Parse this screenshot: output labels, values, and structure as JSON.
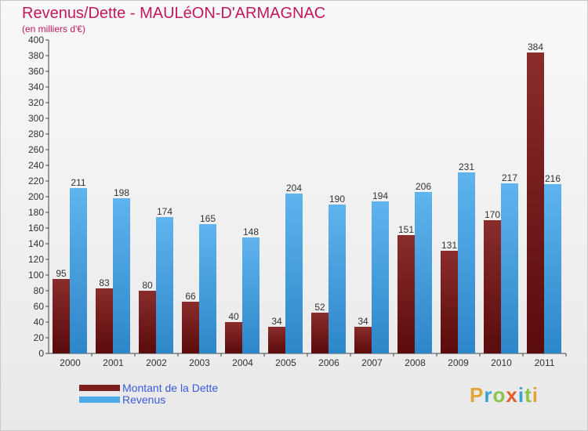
{
  "chart_data": {
    "type": "bar",
    "title": "Revenus/Dette - MAULéON-D'ARMAGNAC",
    "subtitle": "(en milliers d'€)",
    "categories": [
      "2000",
      "2001",
      "2002",
      "2003",
      "2004",
      "2005",
      "2006",
      "2007",
      "2008",
      "2009",
      "2010",
      "2011"
    ],
    "series": [
      {
        "name": "Montant de la Dette",
        "color": "#7b1f1f",
        "values": [
          95,
          83,
          80,
          66,
          40,
          34,
          52,
          34,
          151,
          131,
          170,
          384
        ]
      },
      {
        "name": "Revenus",
        "color": "#4fa9e8",
        "values": [
          211,
          198,
          174,
          165,
          148,
          204,
          190,
          194,
          206,
          231,
          217,
          216
        ]
      }
    ],
    "ylim": [
      0,
      400
    ],
    "ytick_step": 20,
    "xlabel": "",
    "ylabel": "",
    "grid": false,
    "legend_position": "bottom-left"
  },
  "branding": {
    "logo_text": [
      "P",
      "r",
      "o",
      "x",
      "i",
      "t",
      "i"
    ]
  }
}
